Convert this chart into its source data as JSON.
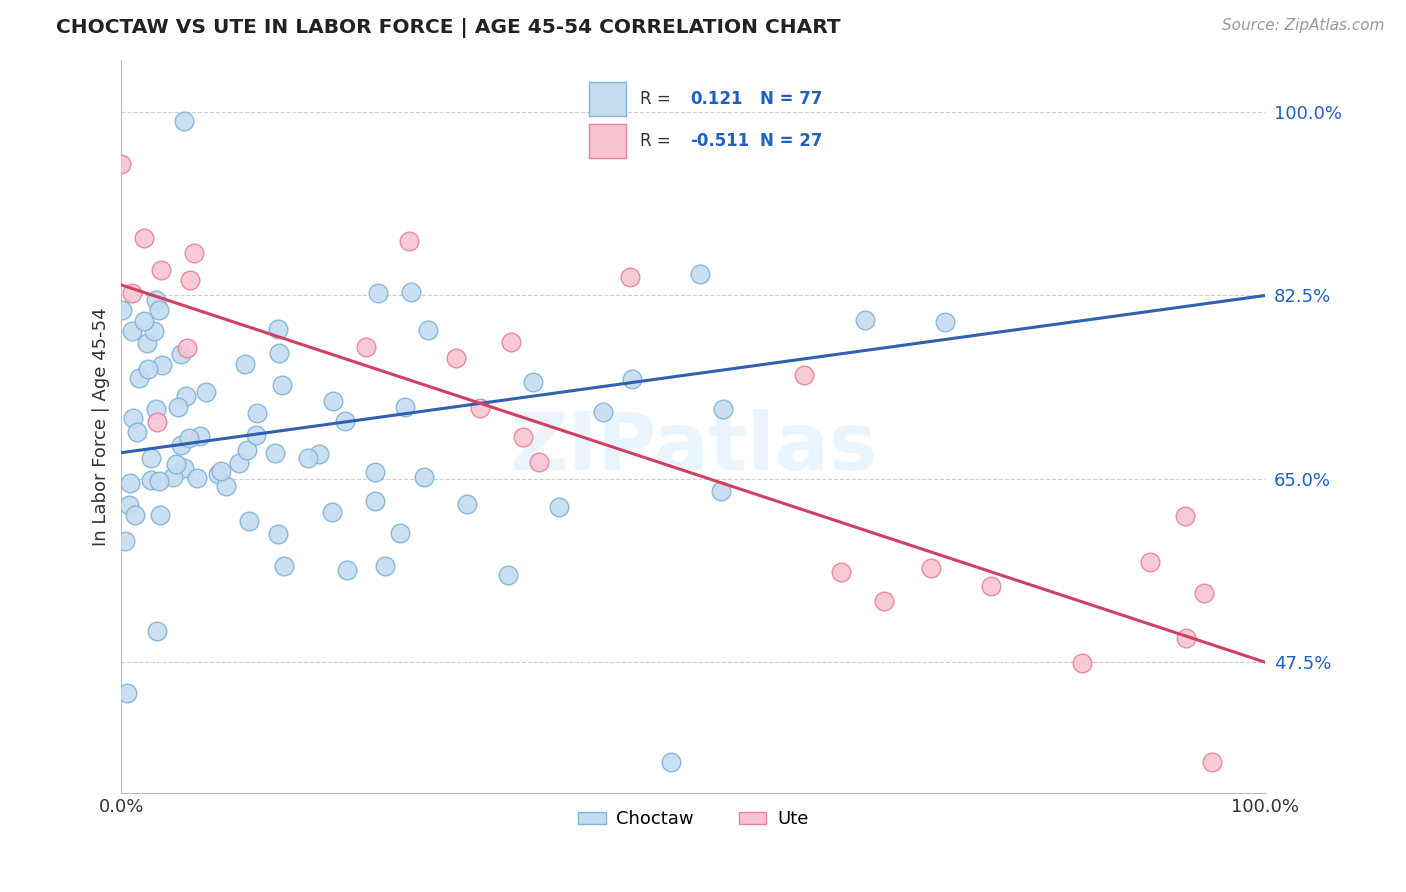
{
  "title": "CHOCTAW VS UTE IN LABOR FORCE | AGE 45-54 CORRELATION CHART",
  "source_text": "Source: ZipAtlas.com",
  "ylabel": "In Labor Force | Age 45-54",
  "yticks": [
    "47.5%",
    "65.0%",
    "82.5%",
    "100.0%"
  ],
  "ytick_values": [
    0.475,
    0.65,
    0.825,
    1.0
  ],
  "watermark": "ZIPatlas",
  "choctaw_color": "#c5dcf0",
  "choctaw_edge_color": "#7fb3d8",
  "ute_color": "#f7c5d2",
  "ute_edge_color": "#e8809a",
  "choctaw_line_color": "#3060b0",
  "ute_line_color": "#d04060",
  "legend_text_color": "#2060c0",
  "choctaw_R": 0.121,
  "choctaw_N": 77,
  "ute_R": -0.511,
  "ute_N": 27,
  "xlim": [
    0.0,
    1.0
  ],
  "ylim": [
    0.35,
    1.05
  ],
  "choctaw_line_y0": 0.675,
  "choctaw_line_y1": 0.825,
  "ute_line_y0": 0.835,
  "ute_line_y1": 0.475
}
